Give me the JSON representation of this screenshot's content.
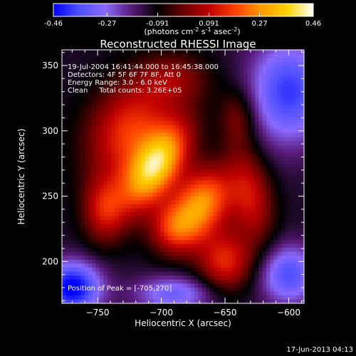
{
  "colorbar": {
    "ticks": [
      "-0.46",
      "-0.27",
      "-0.091",
      "0.091",
      "0.27",
      "0.46"
    ],
    "units_main": "(photons cm",
    "units_sup1": "-2",
    "units_mid1": " s",
    "units_sup2": "-1",
    "units_mid2": " asec",
    "units_sup3": "-2",
    "units_end": ")",
    "colors": [
      "#0000ff",
      "#5050ff",
      "#8a6aff",
      "#5a1a7a",
      "#000000",
      "#6b0000",
      "#c00000",
      "#ff4000",
      "#ff9a00",
      "#ffd200",
      "#ffffff"
    ]
  },
  "chart_data": {
    "type": "heatmap",
    "title": "Reconstructed RHESSI Image",
    "xlabel": "Heliocentric X (arcsec)",
    "ylabel": "Heliocentric Y (arcsec)",
    "xlim": [
      -778,
      -588
    ],
    "ylim": [
      168,
      362
    ],
    "x_ticks": [
      {
        "value": -750,
        "label": "−750"
      },
      {
        "value": -700,
        "label": "−700"
      },
      {
        "value": -650,
        "label": "−650"
      },
      {
        "value": -600,
        "label": "−600"
      }
    ],
    "y_ticks": [
      {
        "value": 200,
        "label": "200"
      },
      {
        "value": 250,
        "label": "250"
      },
      {
        "value": 300,
        "label": "300"
      },
      {
        "value": 350,
        "label": "350"
      }
    ],
    "info_lines": [
      "19-Jul-2004 16:41:44.000 to 16:45:38.000",
      "Detectors: 4F 5F 6F 7F 8F, Att 0",
      "Energy Range: 3.0 - 6.0 keV",
      "Clean     Total counts: 3.26E+05"
    ],
    "peak_label": "Position of Peak = [-705,270]",
    "colorbar_range": [
      -0.46,
      0.46
    ],
    "sources": [
      {
        "x": -705,
        "y": 272,
        "amp": 0.46,
        "sx": 13,
        "sy": 26,
        "rot": -35
      },
      {
        "x": -668,
        "y": 245,
        "amp": 0.38,
        "sx": 15,
        "sy": 20,
        "rot": -30
      },
      {
        "x": -725,
        "y": 300,
        "amp": 0.28,
        "sx": 22,
        "sy": 28,
        "rot": -30
      },
      {
        "x": -650,
        "y": 200,
        "amp": 0.26,
        "sx": 15,
        "sy": 16,
        "rot": 0
      },
      {
        "x": -630,
        "y": 250,
        "amp": 0.22,
        "sx": 12,
        "sy": 26,
        "rot": 10
      },
      {
        "x": -745,
        "y": 240,
        "amp": 0.22,
        "sx": 12,
        "sy": 18,
        "rot": 0
      },
      {
        "x": -690,
        "y": 225,
        "amp": 0.24,
        "sx": 14,
        "sy": 14,
        "rot": 0
      },
      {
        "x": -690,
        "y": 340,
        "amp": 0.14,
        "sx": 20,
        "sy": 14,
        "rot": 0
      },
      {
        "x": -640,
        "y": 310,
        "amp": 0.14,
        "sx": 10,
        "sy": 16,
        "rot": 0
      },
      {
        "x": -770,
        "y": 180,
        "amp": -0.36,
        "sx": 16,
        "sy": 14,
        "rot": 0
      },
      {
        "x": -600,
        "y": 330,
        "amp": -0.28,
        "sx": 22,
        "sy": 28,
        "rot": 0
      },
      {
        "x": -600,
        "y": 190,
        "amp": -0.25,
        "sx": 16,
        "sy": 16,
        "rot": 0
      },
      {
        "x": -690,
        "y": 175,
        "amp": -0.2,
        "sx": 22,
        "sy": 10,
        "rot": 0
      }
    ]
  },
  "footer": {
    "timestamp": "17-Jun-2013 04:13"
  }
}
